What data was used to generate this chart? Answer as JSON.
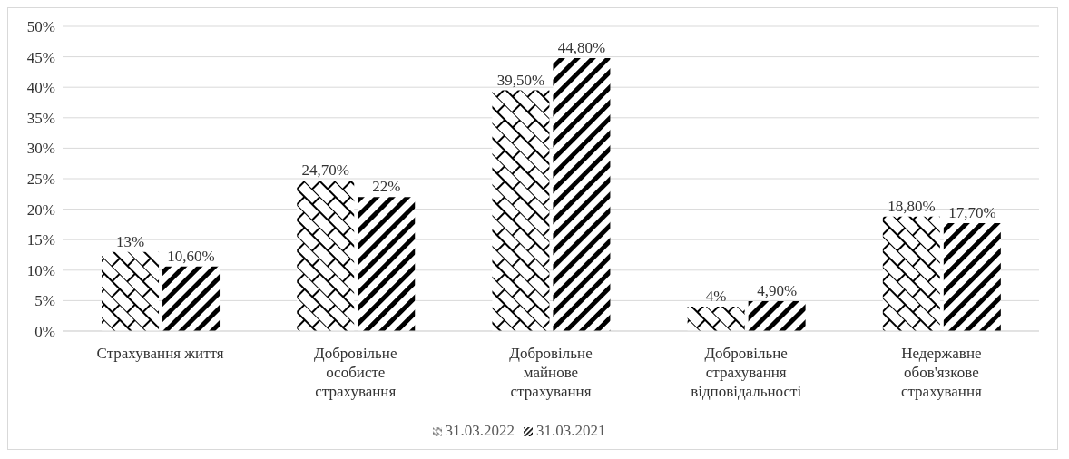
{
  "chart_data": {
    "type": "bar",
    "categories": [
      "Страхування життя",
      "Добровільне особисте страхування",
      "Добровільне майнове страхування",
      "Добровільне страхування відповідальності",
      "Недержавне обов'язкове страхування"
    ],
    "series": [
      {
        "name": "31.03.2022",
        "color": "#000000",
        "values": [
          13,
          24.7,
          39.5,
          4,
          18.8
        ],
        "value_labels": [
          "13%",
          "24,70%",
          "39,50%",
          "4%",
          "18,80%"
        ]
      },
      {
        "name": "31.03.2021",
        "color": "#000000",
        "values": [
          10.6,
          22,
          44.8,
          4.9,
          17.7
        ],
        "value_labels": [
          "10,60%",
          "22%",
          "44,80%",
          "4,90%",
          "17,70%"
        ]
      }
    ],
    "ylim": [
      0,
      50
    ],
    "yticks": [
      {
        "value": 0,
        "label": "0%"
      },
      {
        "value": 5,
        "label": "5%"
      },
      {
        "value": 10,
        "label": "10%"
      },
      {
        "value": 15,
        "label": "15%"
      },
      {
        "value": 20,
        "label": "20%"
      },
      {
        "value": 25,
        "label": "25%"
      },
      {
        "value": 30,
        "label": "30%"
      },
      {
        "value": 35,
        "label": "35%"
      },
      {
        "value": 40,
        "label": "40%"
      },
      {
        "value": 45,
        "label": "45%"
      },
      {
        "value": 50,
        "label": "50%"
      }
    ],
    "grid": "y",
    "legend": "bottom"
  }
}
